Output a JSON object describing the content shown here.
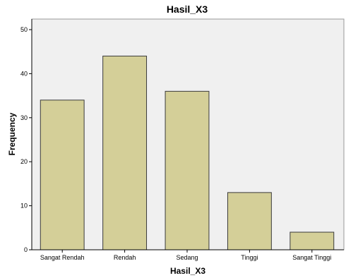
{
  "chart_data": {
    "type": "bar",
    "title": "Hasil_X3",
    "xlabel": "Hasil_X3",
    "ylabel": "Frequency",
    "categories": [
      "Sangat Rendah",
      "Rendah",
      "Sedang",
      "Tinggi",
      "Sangat Tinggi"
    ],
    "values": [
      34,
      44,
      36,
      13,
      4
    ],
    "ylim": [
      0,
      50
    ],
    "yticks": [
      0,
      10,
      20,
      30,
      40,
      50
    ],
    "grid": false,
    "colors": {
      "bar_fill": "#d4cf98",
      "bar_stroke": "#3a3a3a",
      "plot_background": "#f0f0f0"
    }
  }
}
